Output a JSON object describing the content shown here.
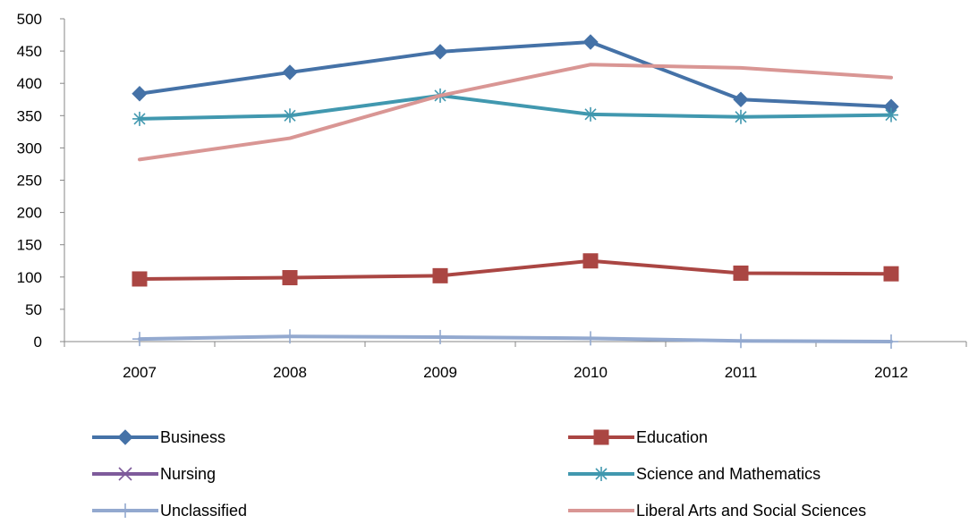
{
  "chart_data": {
    "type": "line",
    "categories": [
      "2007",
      "2008",
      "2009",
      "2010",
      "2011",
      "2012"
    ],
    "ylim": [
      0,
      500
    ],
    "yticks": [
      0,
      50,
      100,
      150,
      200,
      250,
      300,
      350,
      400,
      450,
      500
    ],
    "grid": false,
    "legend_position": "bottom",
    "series": [
      {
        "name": "Business",
        "values": [
          384,
          417,
          449,
          464,
          375,
          364
        ],
        "color": "#4572A7",
        "marker": "diamond"
      },
      {
        "name": "Education",
        "values": [
          97,
          99,
          102,
          125,
          106,
          105
        ],
        "color": "#AA4643",
        "marker": "square"
      },
      {
        "name": "Nursing",
        "values": [
          null,
          null,
          null,
          null,
          null,
          null
        ],
        "color": "#7E5B9B",
        "marker": "x"
      },
      {
        "name": "Science and Mathematics",
        "values": [
          345,
          350,
          381,
          352,
          348,
          351
        ],
        "color": "#4198AF",
        "marker": "asterisk"
      },
      {
        "name": "Unclassified",
        "values": [
          4,
          8,
          7,
          5,
          1,
          0
        ],
        "color": "#93A9CF",
        "marker": "plus"
      },
      {
        "name": "Liberal Arts and Social Sciences",
        "values": [
          282,
          315,
          381,
          429,
          424,
          409
        ],
        "color": "#D99694",
        "marker": "none"
      }
    ]
  }
}
